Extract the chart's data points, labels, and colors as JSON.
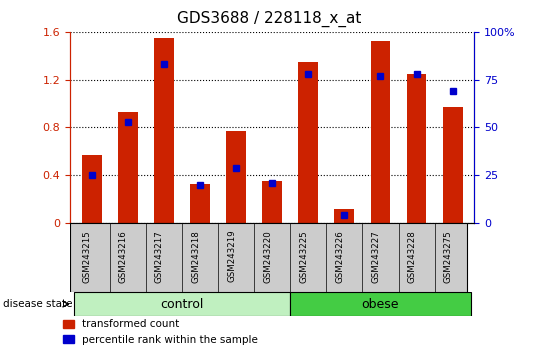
{
  "title": "GDS3688 / 228118_x_at",
  "samples": [
    "GSM243215",
    "GSM243216",
    "GSM243217",
    "GSM243218",
    "GSM243219",
    "GSM243220",
    "GSM243225",
    "GSM243226",
    "GSM243227",
    "GSM243228",
    "GSM243275"
  ],
  "red_values": [
    0.57,
    0.93,
    1.55,
    0.33,
    0.77,
    0.35,
    1.35,
    0.12,
    1.52,
    1.25,
    0.97
  ],
  "blue_pct": [
    25,
    53,
    83,
    20,
    29,
    21,
    78,
    4,
    77,
    78,
    69
  ],
  "groups": [
    {
      "label": "control",
      "start": 0,
      "end": 6,
      "color": "#c0f0c0"
    },
    {
      "label": "obese",
      "start": 6,
      "end": 11,
      "color": "#44cc44"
    }
  ],
  "ylim_left": [
    0,
    1.6
  ],
  "ylim_right": [
    0,
    100
  ],
  "yticks_left": [
    0,
    0.4,
    0.8,
    1.2,
    1.6
  ],
  "ytick_labels_left": [
    "0",
    "0.4",
    "0.8",
    "1.2",
    "1.6"
  ],
  "yticks_right": [
    0,
    25,
    50,
    75,
    100
  ],
  "ytick_labels_right": [
    "0",
    "25",
    "50",
    "75",
    "100%"
  ],
  "bar_color_red": "#cc2200",
  "bar_color_blue": "#0000cc",
  "bar_width": 0.55,
  "tick_label_area_color": "#cccccc",
  "disease_state_label": "disease state",
  "legend_red": "transformed count",
  "legend_blue": "percentile rank within the sample",
  "title_fontsize": 11,
  "left_tick_color": "#cc2200",
  "right_tick_color": "#0000cc"
}
